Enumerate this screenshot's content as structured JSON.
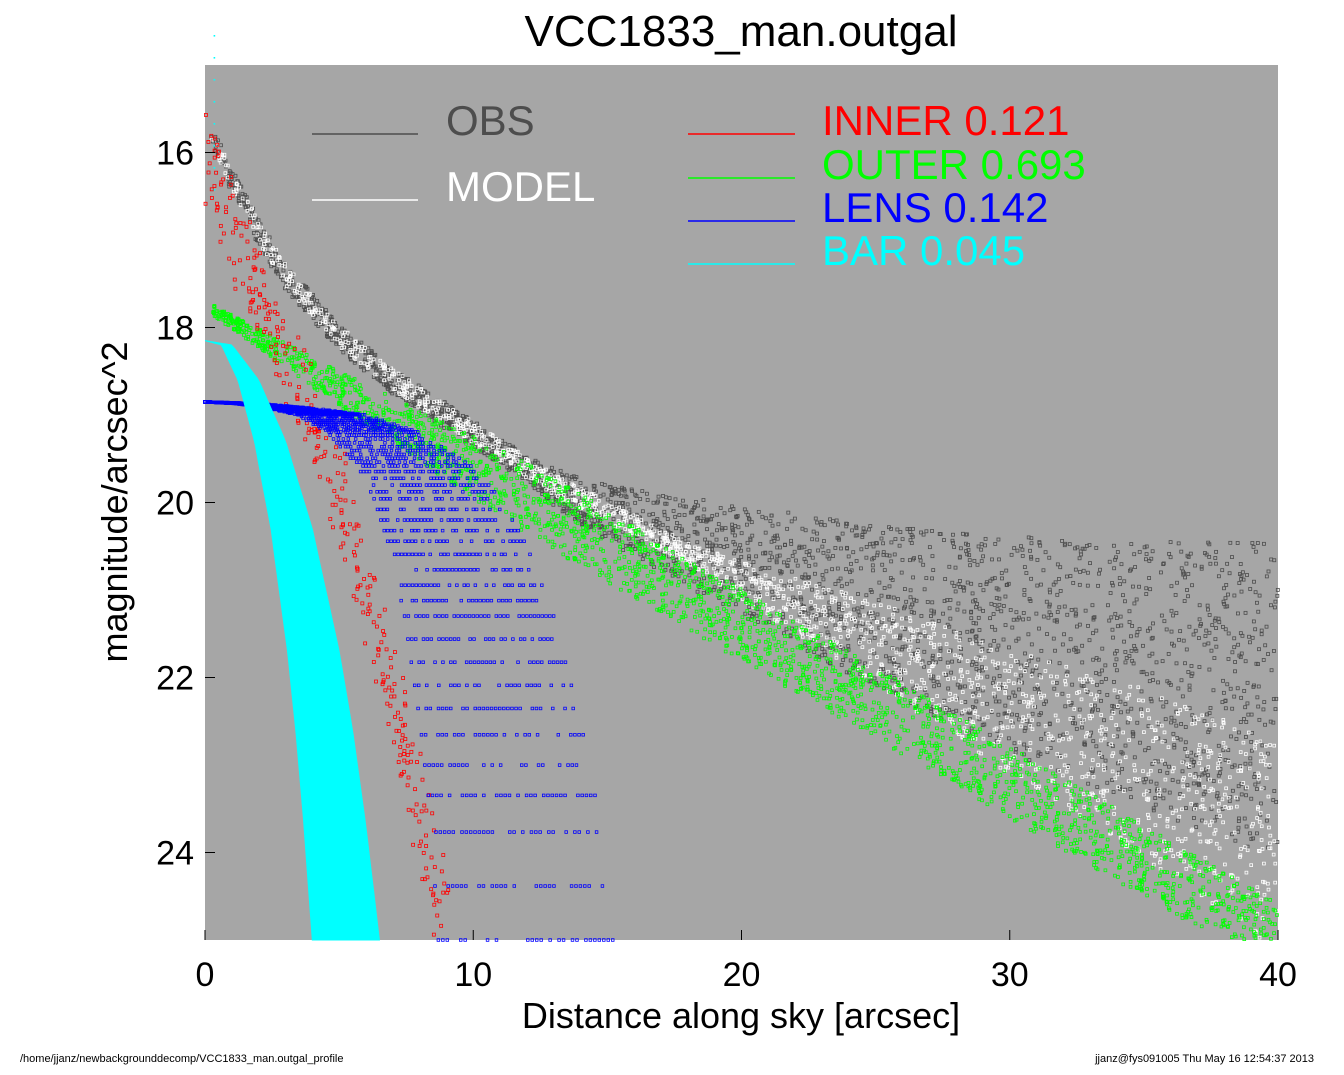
{
  "chart_data": {
    "type": "scatter",
    "title": "VCC1833_man.outgal",
    "xlabel": "Distance along sky [arcsec]",
    "ylabel": "magnitude/arcsec^2",
    "xlim": [
      0,
      40
    ],
    "ylim": [
      25,
      15
    ],
    "y_inverted": true,
    "x_ticks": [
      0,
      10,
      20,
      30,
      40
    ],
    "y_ticks": [
      16,
      18,
      20,
      22,
      24
    ],
    "background": "#a6a6a6",
    "legend": [
      {
        "name": "OBS",
        "color": "#4d4d4d"
      },
      {
        "name": "MODEL",
        "color": "#ffffff"
      },
      {
        "name": "INNER",
        "fraction": "0.121",
        "color": "#ff0000"
      },
      {
        "name": "OUTER",
        "fraction": "0.693",
        "color": "#00ff00"
      },
      {
        "name": "LENS",
        "fraction": "0.142",
        "color": "#0000ff"
      },
      {
        "name": "BAR",
        "fraction": "0.045",
        "color": "#00ffff"
      }
    ],
    "series": [
      {
        "name": "OBS",
        "color": "#4d4d4d",
        "x": [
          0.2,
          1,
          2,
          3,
          5,
          7,
          10,
          13,
          15,
          20,
          25,
          30,
          35,
          40
        ],
        "y": [
          15.8,
          16.3,
          16.9,
          17.4,
          18.1,
          18.6,
          19.2,
          19.8,
          20.1,
          20.6,
          21.1,
          21.5,
          21.8,
          22.1
        ],
        "scatter_at_large_radius": true
      },
      {
        "name": "MODEL",
        "color": "#ffffff",
        "x": [
          0.2,
          1,
          2,
          3,
          5,
          7,
          10,
          13,
          15,
          20,
          25,
          30,
          35,
          40
        ],
        "y": [
          15.8,
          16.3,
          16.9,
          17.4,
          18.1,
          18.6,
          19.2,
          19.8,
          20.1,
          20.9,
          21.6,
          22.4,
          23.1,
          23.9
        ]
      },
      {
        "name": "INNER",
        "color": "#ff0000",
        "x": [
          0,
          1,
          2,
          3,
          4,
          5,
          6,
          7,
          8,
          9
        ],
        "y": [
          16.0,
          16.9,
          17.6,
          18.3,
          19.0,
          19.9,
          21.0,
          22.2,
          23.5,
          24.9
        ]
      },
      {
        "name": "OUTER",
        "color": "#00ff00",
        "x": [
          0.3,
          5,
          10,
          15,
          20,
          25,
          30,
          35,
          40
        ],
        "y": [
          17.8,
          18.7,
          19.6,
          20.5,
          21.4,
          22.3,
          23.2,
          24.1,
          25.0
        ]
      },
      {
        "name": "LENS",
        "color": "#0000ff",
        "x": [
          0,
          2,
          4,
          6,
          8,
          10,
          11,
          12,
          13,
          14,
          14.7,
          15.2
        ],
        "y": [
          18.85,
          18.87,
          18.92,
          19.0,
          19.2,
          19.6,
          19.95,
          20.5,
          21.3,
          22.5,
          23.6,
          25.0
        ]
      },
      {
        "name": "BAR",
        "color": "#00ffff",
        "x": [
          0,
          1,
          2,
          3,
          4,
          5,
          5.5,
          6,
          6.5
        ],
        "y": [
          18.15,
          18.2,
          18.6,
          19.3,
          20.3,
          21.7,
          22.6,
          23.7,
          25.0
        ]
      }
    ]
  },
  "footer": {
    "left": "/home/jjanz/newbackgrounddecomp/VCC1833_man.outgal_profile",
    "right": "jjanz@fys091005  Thu May 16 12:54:37 2013"
  }
}
